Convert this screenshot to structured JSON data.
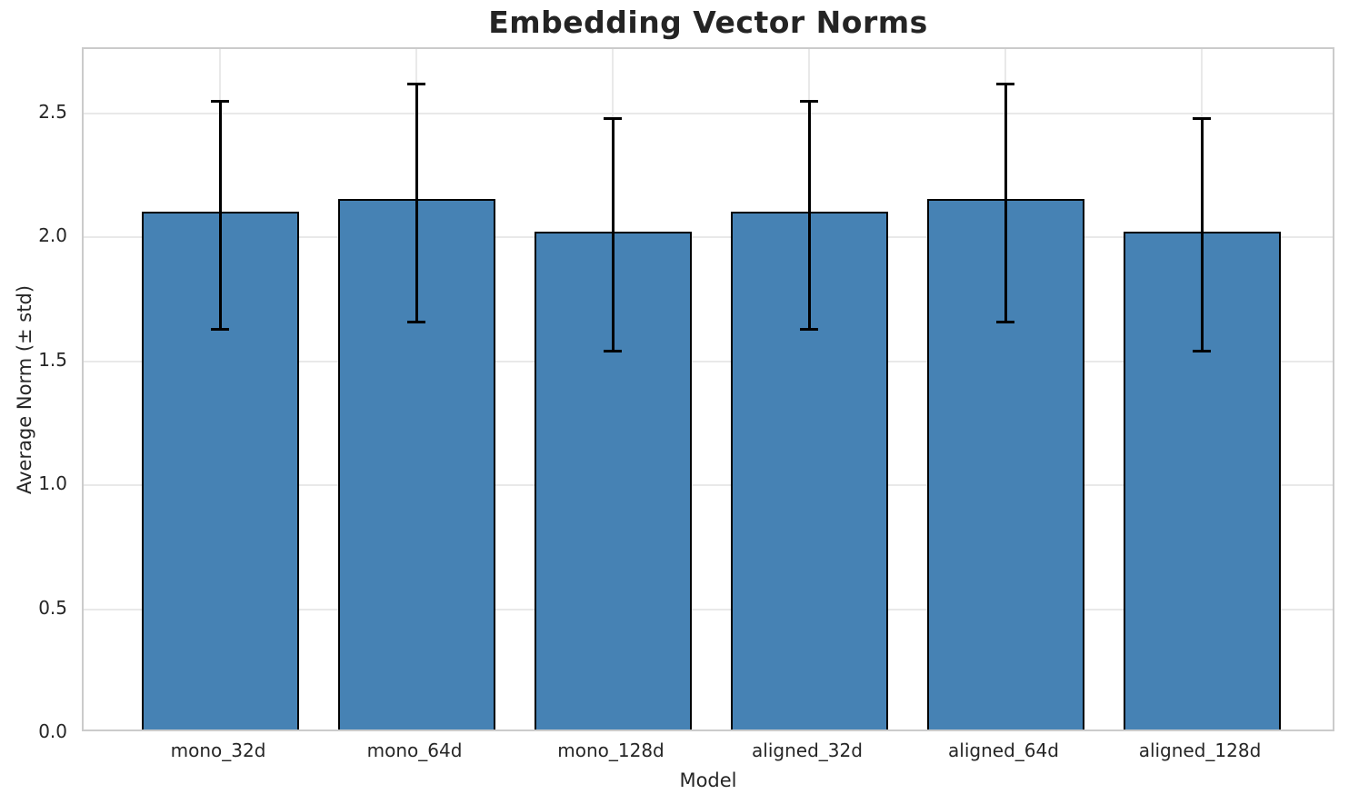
{
  "chart_data": {
    "type": "bar",
    "title": "Embedding Vector Norms",
    "xlabel": "Model",
    "ylabel": "Average Norm (± std)",
    "categories": [
      "mono_32d",
      "mono_64d",
      "mono_128d",
      "aligned_32d",
      "aligned_64d",
      "aligned_128d"
    ],
    "series": [
      {
        "name": "Average Norm",
        "values": [
          2.09,
          2.14,
          2.01,
          2.09,
          2.14,
          2.01
        ],
        "errors": [
          0.46,
          0.48,
          0.47,
          0.46,
          0.48,
          0.47
        ]
      }
    ],
    "yticks": [
      0.0,
      0.5,
      1.0,
      1.5,
      2.0,
      2.5
    ],
    "ylim": [
      0,
      2.76
    ],
    "grid": true,
    "legend": "none",
    "colors": {
      "bar_fill": "#4682b4",
      "bar_edge": "#000000",
      "error_bar": "#000000",
      "grid": "#e9e9e9",
      "spine": "#cbcbcb",
      "text": "#262626"
    }
  }
}
